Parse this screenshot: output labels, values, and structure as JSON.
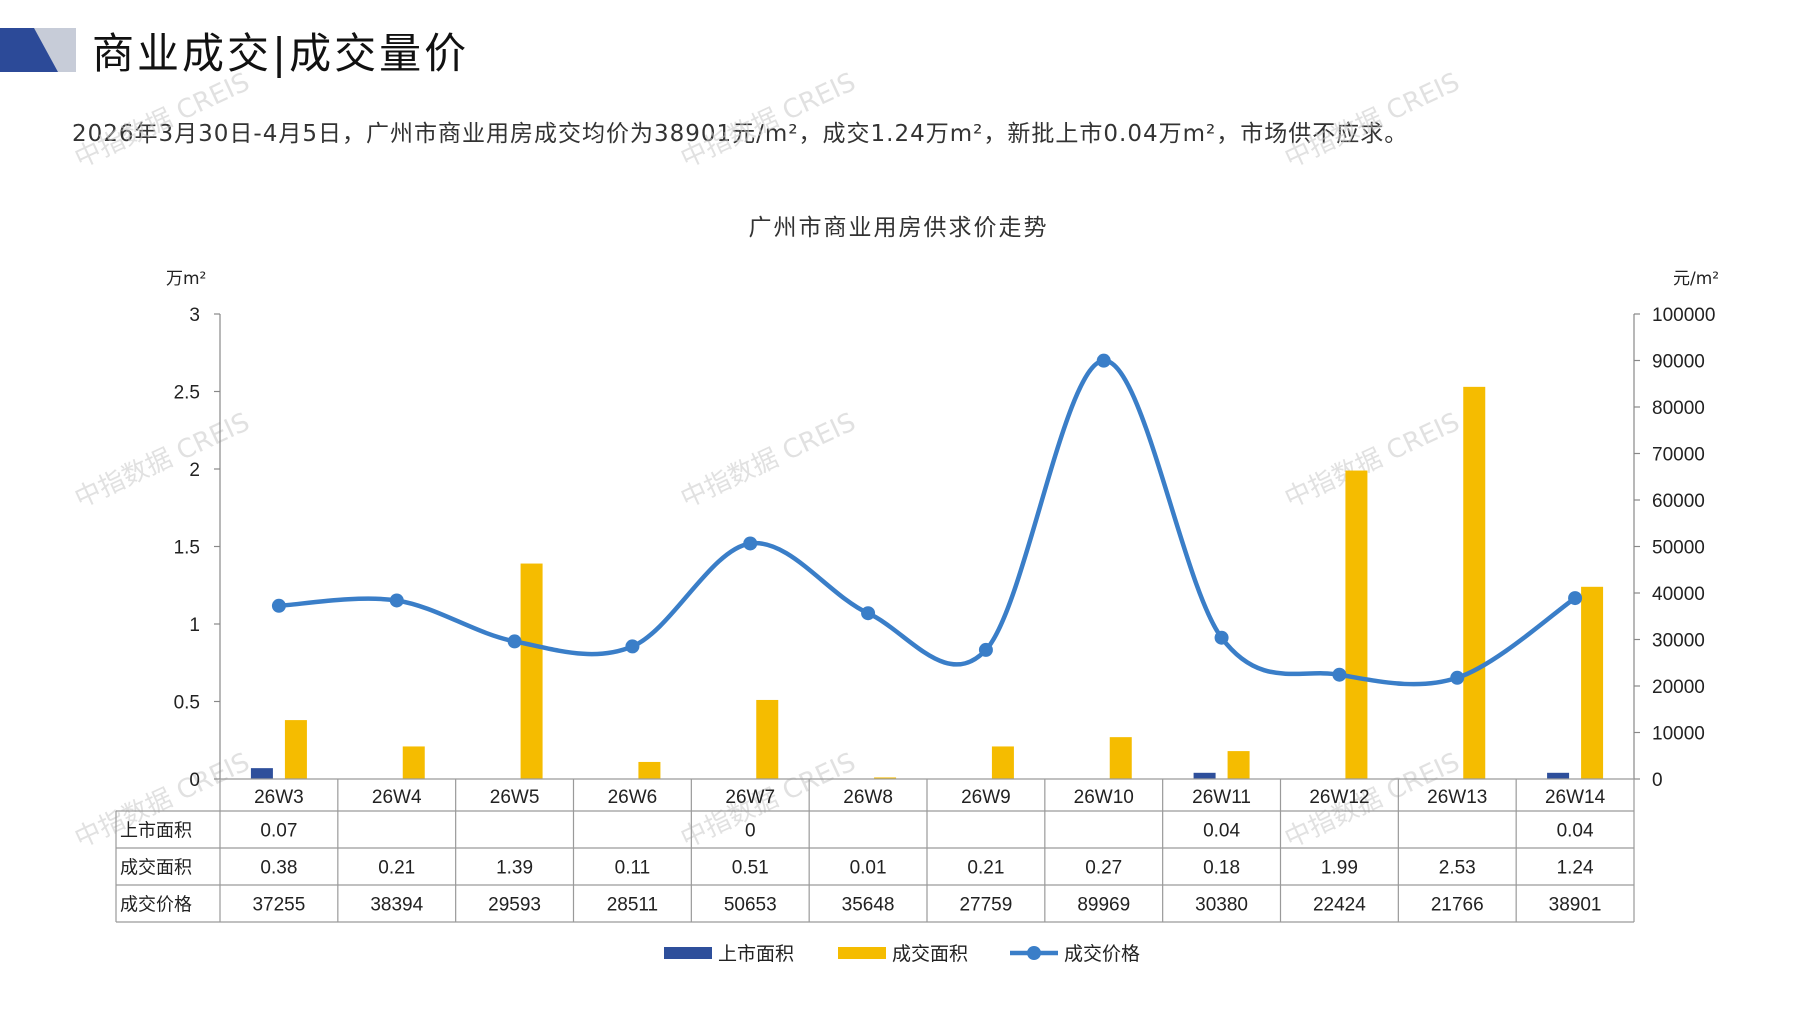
{
  "header": {
    "title": "商业成交|成交量价",
    "summary": "2026年3月30日-4月5日，广州市商业用房成交均价为38901元/m²，成交1.24万m²，新批上市0.04万m²，市场供不应求。"
  },
  "watermark_text": "中指数据 CREIS",
  "colors": {
    "supply": "#2e4f9b",
    "transaction": "#f5bc00",
    "price": "#3a7ec8",
    "logo_dark": "#2c4a98",
    "logo_light": "#c7ccd8"
  },
  "chart_data": {
    "type": "bar",
    "title": "广州市商业用房供求价走势",
    "ylabel_left": "万m²",
    "ylabel_right": "元/m²",
    "ylim_left": [
      0,
      3
    ],
    "ylim_right": [
      0,
      100000
    ],
    "yticks_left": [
      "0",
      "0.5",
      "1",
      "1.5",
      "2",
      "2.5",
      "3"
    ],
    "yticks_right": [
      "0",
      "10000",
      "20000",
      "30000",
      "40000",
      "50000",
      "60000",
      "70000",
      "80000",
      "90000",
      "100000"
    ],
    "categories": [
      "26W3",
      "26W4",
      "26W5",
      "26W6",
      "26W7",
      "26W8",
      "26W9",
      "26W10",
      "26W11",
      "26W12",
      "26W13",
      "26W14"
    ],
    "series": [
      {
        "name": "上市面积",
        "type": "bar",
        "axis": "left",
        "values": [
          0.07,
          null,
          null,
          null,
          0,
          null,
          null,
          null,
          0.04,
          null,
          null,
          0.04
        ],
        "labels": [
          "0.07",
          "",
          "",
          "",
          "0",
          "",
          "",
          "",
          "0.04",
          "",
          "",
          "0.04"
        ]
      },
      {
        "name": "成交面积",
        "type": "bar",
        "axis": "left",
        "values": [
          0.38,
          0.21,
          1.39,
          0.11,
          0.51,
          0.01,
          0.21,
          0.27,
          0.18,
          1.99,
          2.53,
          1.24
        ],
        "labels": [
          "0.38",
          "0.21",
          "1.39",
          "0.11",
          "0.51",
          "0.01",
          "0.21",
          "0.27",
          "0.18",
          "1.99",
          "2.53",
          "1.24"
        ]
      },
      {
        "name": "成交价格",
        "type": "line",
        "axis": "right",
        "values": [
          37255,
          38394,
          29593,
          28511,
          50653,
          35648,
          27759,
          89969,
          30380,
          22424,
          21766,
          38901
        ],
        "labels": [
          "37255",
          "38394",
          "29593",
          "28511",
          "50653",
          "35648",
          "27759",
          "89969",
          "30380",
          "22424",
          "21766",
          "38901"
        ]
      }
    ],
    "legend_position": "bottom",
    "grid": false
  }
}
